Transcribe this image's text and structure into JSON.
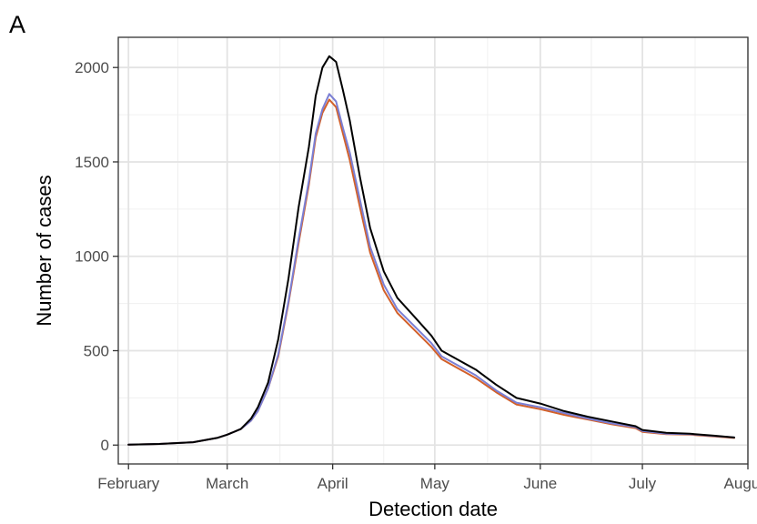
{
  "chart_data": {
    "type": "line",
    "panel_label": "A",
    "title": "",
    "xlabel": "Detection date",
    "ylabel": "Number of cases",
    "xlim": [
      "2020-01-29",
      "2020-08-01"
    ],
    "ylim": [
      -100,
      2160
    ],
    "x_ticks": [
      {
        "date": "2020-02-01",
        "label": "February"
      },
      {
        "date": "2020-03-01",
        "label": "March"
      },
      {
        "date": "2020-04-01",
        "label": "April"
      },
      {
        "date": "2020-05-01",
        "label": "May"
      },
      {
        "date": "2020-06-01",
        "label": "June"
      },
      {
        "date": "2020-07-01",
        "label": "July"
      },
      {
        "date": "2020-08-01",
        "label": "August"
      }
    ],
    "y_ticks": [
      0,
      500,
      1000,
      1500,
      2000
    ],
    "grid": true,
    "legend": "none",
    "series": [
      {
        "color": "#000000",
        "points": [
          [
            "2020-02-01",
            2
          ],
          [
            "2020-02-10",
            6
          ],
          [
            "2020-02-20",
            15
          ],
          [
            "2020-02-27",
            38
          ],
          [
            "2020-03-01",
            55
          ],
          [
            "2020-03-05",
            85
          ],
          [
            "2020-03-08",
            140
          ],
          [
            "2020-03-10",
            200
          ],
          [
            "2020-03-13",
            330
          ],
          [
            "2020-03-16",
            560
          ],
          [
            "2020-03-19",
            880
          ],
          [
            "2020-03-22",
            1260
          ],
          [
            "2020-03-25",
            1580
          ],
          [
            "2020-03-27",
            1850
          ],
          [
            "2020-03-29",
            2000
          ],
          [
            "2020-03-31",
            2060
          ],
          [
            "2020-04-02",
            2030
          ],
          [
            "2020-04-04",
            1880
          ],
          [
            "2020-04-06",
            1720
          ],
          [
            "2020-04-09",
            1420
          ],
          [
            "2020-04-12",
            1150
          ],
          [
            "2020-04-16",
            920
          ],
          [
            "2020-04-20",
            780
          ],
          [
            "2020-04-25",
            680
          ],
          [
            "2020-04-30",
            580
          ],
          [
            "2020-05-03",
            500
          ],
          [
            "2020-05-08",
            450
          ],
          [
            "2020-05-13",
            400
          ],
          [
            "2020-05-19",
            320
          ],
          [
            "2020-05-25",
            250
          ],
          [
            "2020-06-01",
            220
          ],
          [
            "2020-06-08",
            180
          ],
          [
            "2020-06-15",
            150
          ],
          [
            "2020-06-22",
            125
          ],
          [
            "2020-06-29",
            100
          ],
          [
            "2020-07-01",
            80
          ],
          [
            "2020-07-08",
            65
          ],
          [
            "2020-07-15",
            60
          ],
          [
            "2020-07-22",
            50
          ],
          [
            "2020-07-28",
            40
          ]
        ]
      },
      {
        "color": "#7b7fd4",
        "points": [
          [
            "2020-02-01",
            2
          ],
          [
            "2020-02-10",
            6
          ],
          [
            "2020-02-20",
            15
          ],
          [
            "2020-02-27",
            38
          ],
          [
            "2020-03-01",
            55
          ],
          [
            "2020-03-05",
            85
          ],
          [
            "2020-03-08",
            130
          ],
          [
            "2020-03-10",
            180
          ],
          [
            "2020-03-13",
            300
          ],
          [
            "2020-03-16",
            480
          ],
          [
            "2020-03-19",
            760
          ],
          [
            "2020-03-22",
            1090
          ],
          [
            "2020-03-25",
            1400
          ],
          [
            "2020-03-27",
            1650
          ],
          [
            "2020-03-29",
            1780
          ],
          [
            "2020-03-31",
            1860
          ],
          [
            "2020-04-02",
            1820
          ],
          [
            "2020-04-04",
            1680
          ],
          [
            "2020-04-06",
            1550
          ],
          [
            "2020-04-09",
            1300
          ],
          [
            "2020-04-12",
            1050
          ],
          [
            "2020-04-16",
            850
          ],
          [
            "2020-04-20",
            720
          ],
          [
            "2020-04-25",
            630
          ],
          [
            "2020-04-30",
            540
          ],
          [
            "2020-05-03",
            470
          ],
          [
            "2020-05-08",
            420
          ],
          [
            "2020-05-13",
            370
          ],
          [
            "2020-05-19",
            290
          ],
          [
            "2020-05-25",
            225
          ],
          [
            "2020-06-01",
            200
          ],
          [
            "2020-06-08",
            170
          ],
          [
            "2020-06-15",
            140
          ],
          [
            "2020-06-22",
            115
          ],
          [
            "2020-06-29",
            95
          ],
          [
            "2020-07-01",
            75
          ],
          [
            "2020-07-08",
            60
          ],
          [
            "2020-07-15",
            58
          ],
          [
            "2020-07-22",
            48
          ],
          [
            "2020-07-28",
            40
          ]
        ]
      },
      {
        "color": "#d2602a",
        "points": [
          [
            "2020-02-01",
            2
          ],
          [
            "2020-02-10",
            6
          ],
          [
            "2020-02-20",
            15
          ],
          [
            "2020-02-27",
            38
          ],
          [
            "2020-03-01",
            55
          ],
          [
            "2020-03-05",
            85
          ],
          [
            "2020-03-08",
            130
          ],
          [
            "2020-03-10",
            180
          ],
          [
            "2020-03-13",
            300
          ],
          [
            "2020-03-16",
            470
          ],
          [
            "2020-03-19",
            750
          ],
          [
            "2020-03-22",
            1070
          ],
          [
            "2020-03-25",
            1380
          ],
          [
            "2020-03-27",
            1630
          ],
          [
            "2020-03-29",
            1760
          ],
          [
            "2020-03-31",
            1830
          ],
          [
            "2020-04-02",
            1790
          ],
          [
            "2020-04-04",
            1650
          ],
          [
            "2020-04-06",
            1510
          ],
          [
            "2020-04-09",
            1260
          ],
          [
            "2020-04-12",
            1020
          ],
          [
            "2020-04-16",
            820
          ],
          [
            "2020-04-20",
            700
          ],
          [
            "2020-04-25",
            610
          ],
          [
            "2020-04-30",
            520
          ],
          [
            "2020-05-03",
            455
          ],
          [
            "2020-05-08",
            405
          ],
          [
            "2020-05-13",
            355
          ],
          [
            "2020-05-19",
            280
          ],
          [
            "2020-05-25",
            215
          ],
          [
            "2020-06-01",
            190
          ],
          [
            "2020-06-08",
            160
          ],
          [
            "2020-06-15",
            135
          ],
          [
            "2020-06-22",
            110
          ],
          [
            "2020-06-29",
            90
          ],
          [
            "2020-07-01",
            70
          ],
          [
            "2020-07-08",
            58
          ],
          [
            "2020-07-15",
            55
          ],
          [
            "2020-07-22",
            46
          ],
          [
            "2020-07-28",
            38
          ]
        ]
      }
    ]
  }
}
